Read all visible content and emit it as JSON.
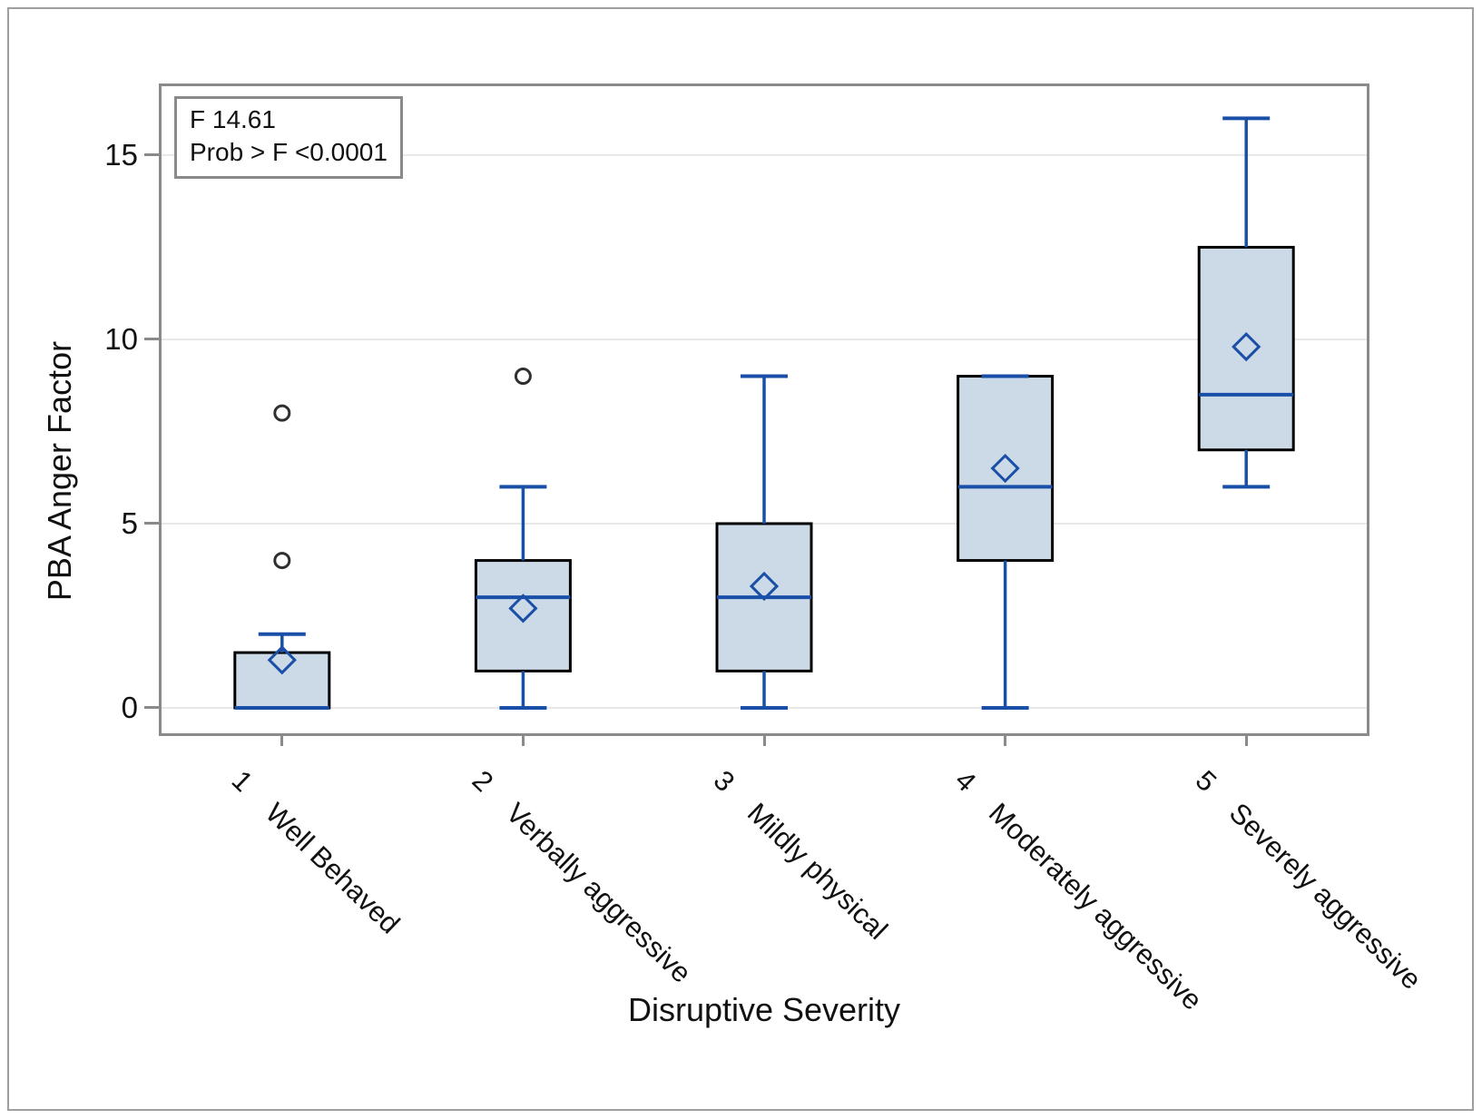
{
  "chart_data": {
    "type": "boxplot",
    "title": "",
    "xlabel": "Disruptive Severity",
    "ylabel": "PBA Anger Factor",
    "annotation": [
      "F 14.61",
      "Prob > F <0.0001"
    ],
    "y_ticks": [
      0,
      5,
      10,
      15
    ],
    "ylim": [
      -0.69,
      16.87
    ],
    "grid": "horizontal",
    "legend": "none",
    "categories": [
      {
        "value": "1",
        "label": "Well Behaved",
        "q1": 0,
        "median": 0,
        "q3": 1.5,
        "whisker_low": 0,
        "whisker_high": 2,
        "mean": 1.3,
        "outliers": [
          4,
          8
        ]
      },
      {
        "value": "2",
        "label": "Verbally aggressive",
        "q1": 1,
        "median": 3,
        "q3": 4,
        "whisker_low": 0,
        "whisker_high": 6,
        "mean": 2.7,
        "outliers": [
          9
        ]
      },
      {
        "value": "3",
        "label": "Mildly physical",
        "q1": 1,
        "median": 3,
        "q3": 5,
        "whisker_low": 0,
        "whisker_high": 9,
        "mean": 3.3,
        "outliers": []
      },
      {
        "value": "4",
        "label": "Moderately aggressive",
        "q1": 4,
        "median": 6,
        "q3": 9,
        "whisker_low": 0,
        "whisker_high": 9,
        "mean": 6.5,
        "outliers": []
      },
      {
        "value": "5",
        "label": "Severely aggressive",
        "q1": 7,
        "median": 8.5,
        "q3": 12.5,
        "whisker_low": 6,
        "whisker_high": 16,
        "mean": 9.8,
        "outliers": []
      }
    ],
    "colors": {
      "box_fill": "#ccd9e7",
      "box_border": "#000000",
      "line_blue": "#1a4fa8",
      "outlier": "#2f2f2f",
      "gridline": "#e8e8e8",
      "frame": "#8a8a8a",
      "text": "#111111"
    }
  }
}
